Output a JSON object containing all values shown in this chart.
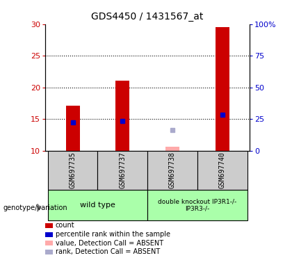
{
  "title": "GDS4450 / 1431567_at",
  "samples": [
    "GSM697735",
    "GSM697737",
    "GSM697738",
    "GSM697740"
  ],
  "x_positions": [
    1,
    2,
    3,
    4
  ],
  "count_values": [
    17.1,
    21.1,
    null,
    29.5
  ],
  "percentile_values": [
    14.5,
    14.7,
    null,
    15.7
  ],
  "absent_value_values": [
    null,
    null,
    10.6,
    null
  ],
  "absent_rank_values": [
    null,
    null,
    13.3,
    null
  ],
  "ylim_left": [
    10,
    30
  ],
  "ylim_right": [
    0,
    100
  ],
  "yticks_left": [
    10,
    15,
    20,
    25,
    30
  ],
  "yticks_right": [
    0,
    25,
    50,
    75,
    100
  ],
  "ytick_labels_right": [
    "0",
    "25",
    "50",
    "75",
    "100%"
  ],
  "bar_width": 0.28,
  "count_color": "#cc0000",
  "percentile_color": "#0000cc",
  "absent_value_color": "#ffaaaa",
  "absent_rank_color": "#aaaacc",
  "tick_color_left": "#cc0000",
  "tick_color_right": "#0000cc",
  "group1_label": "wild type",
  "group2_label": "double knockout IP3R1-/-\nIP3R3-/-",
  "group_bg_color": "#aaffaa",
  "sample_bg_color": "#cccccc",
  "legend_labels": [
    "count",
    "percentile rank within the sample",
    "value, Detection Call = ABSENT",
    "rank, Detection Call = ABSENT"
  ],
  "legend_colors": [
    "#cc0000",
    "#0000cc",
    "#ffaaaa",
    "#aaaacc"
  ]
}
